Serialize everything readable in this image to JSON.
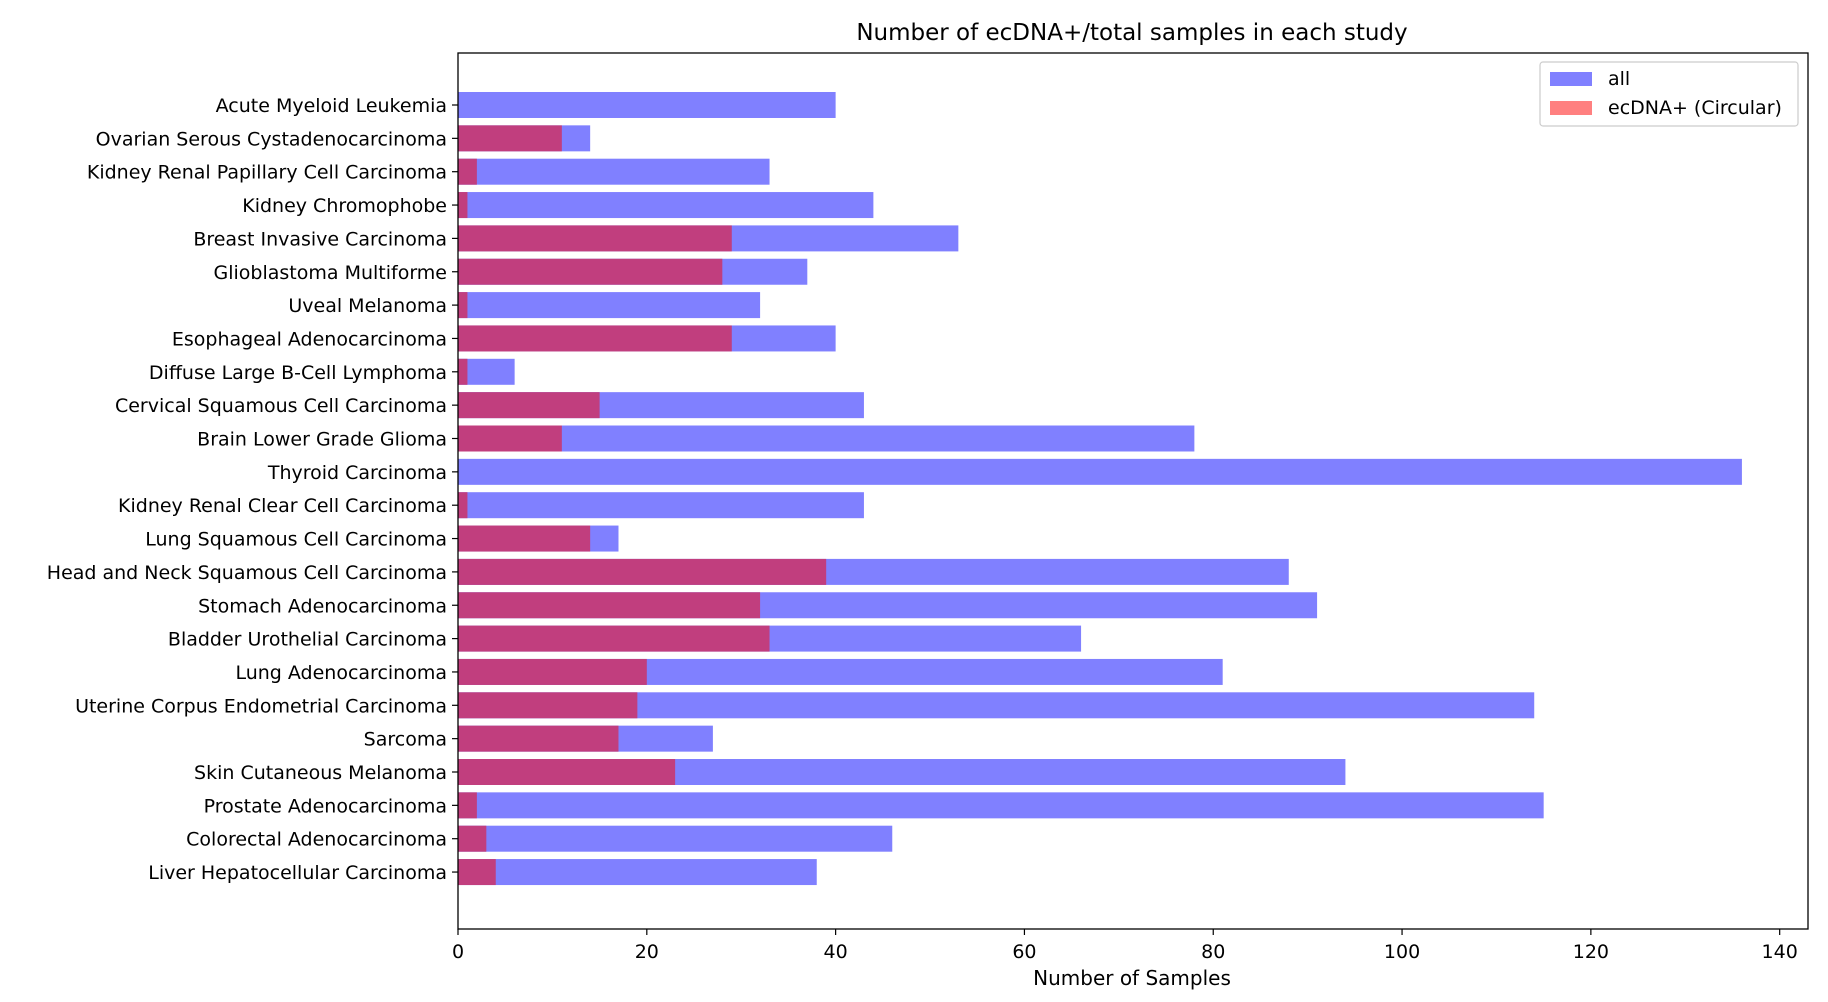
{
  "chart_data": {
    "type": "bar",
    "orientation": "horizontal",
    "title": "Number of ecDNA+/total samples in each study",
    "xlabel": "Number of Samples",
    "ylabel": "",
    "xlim": [
      0,
      143
    ],
    "xticks": [
      0,
      20,
      40,
      60,
      80,
      100,
      120,
      140
    ],
    "grid": false,
    "legend_position": "top-right",
    "categories": [
      "Acute Myeloid Leukemia",
      "Ovarian Serous Cystadenocarcinoma",
      "Kidney Renal Papillary Cell Carcinoma",
      "Kidney Chromophobe",
      "Breast Invasive Carcinoma",
      "Glioblastoma Multiforme",
      "Uveal Melanoma",
      "Esophageal Adenocarcinoma",
      "Diffuse Large B-Cell Lymphoma",
      "Cervical Squamous Cell Carcinoma",
      "Brain Lower Grade Glioma",
      "Thyroid Carcinoma",
      "Kidney Renal Clear Cell Carcinoma",
      "Lung Squamous Cell Carcinoma",
      "Head and Neck Squamous Cell Carcinoma",
      "Stomach Adenocarcinoma",
      "Bladder Urothelial Carcinoma",
      "Lung Adenocarcinoma",
      "Uterine Corpus Endometrial Carcinoma",
      "Sarcoma",
      "Skin Cutaneous Melanoma",
      "Prostate Adenocarcinoma",
      "Colorectal Adenocarcinoma",
      "Liver Hepatocellular Carcinoma"
    ],
    "series": [
      {
        "name": "all",
        "color": "#8080ff",
        "values": [
          40,
          14,
          33,
          44,
          53,
          37,
          32,
          40,
          6,
          43,
          78,
          136,
          43,
          17,
          88,
          91,
          66,
          81,
          114,
          27,
          94,
          115,
          46,
          38
        ]
      },
      {
        "name": "ecDNA+ (Circular)",
        "color": "#ff8080",
        "overlay_color": "#c13e7e",
        "values": [
          0,
          11,
          2,
          1,
          29,
          28,
          1,
          29,
          1,
          15,
          11,
          0,
          1,
          14,
          39,
          32,
          33,
          20,
          19,
          17,
          23,
          2,
          3,
          4
        ]
      }
    ]
  }
}
